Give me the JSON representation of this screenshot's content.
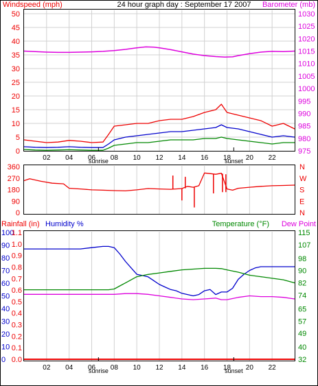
{
  "header": {
    "title": "24 hour graph day : September 17 2007",
    "left_label": "Windspeed (mph)",
    "right_label": "Barometer (mb)"
  },
  "x_axis": {
    "ticks": [
      "02",
      "04",
      "06",
      "08",
      "10",
      "12",
      "14",
      "16",
      "18",
      "20",
      "22"
    ],
    "sunrise_label": "sunrise",
    "sunset_label": "sunset",
    "sunrise_hour": 6.6,
    "sunset_hour": 18.6
  },
  "chart_data": [
    {
      "type": "line",
      "name": "wind-barometer",
      "x_range": [
        0,
        24
      ],
      "left_axis": {
        "label": "Windspeed (mph)",
        "ticks": [
          "0",
          "5",
          "10",
          "15",
          "20",
          "25",
          "30",
          "35",
          "40",
          "45",
          "50"
        ],
        "range": [
          0,
          50
        ]
      },
      "right_axis": {
        "label": "Barometer (mb)",
        "ticks": [
          "975",
          "980",
          "985",
          "990",
          "995",
          "1000",
          "1005",
          "1010",
          "1015",
          "1020",
          "1025",
          "1030"
        ],
        "range": [
          975,
          1030
        ]
      },
      "series": [
        {
          "key": "barometer",
          "axis": "right",
          "color": "#dd00dd",
          "x": [
            0,
            1,
            2,
            3,
            4,
            5,
            6,
            7,
            8,
            9,
            10,
            10.8,
            11.5,
            12,
            13,
            14,
            15,
            16,
            17,
            17.8,
            18.5,
            19,
            20,
            21,
            22,
            23,
            24
          ],
          "y": [
            1015.0,
            1014.8,
            1014.6,
            1014.5,
            1014.5,
            1014.6,
            1014.7,
            1014.9,
            1015.2,
            1015.7,
            1016.3,
            1016.7,
            1016.6,
            1016.3,
            1015.6,
            1014.7,
            1013.8,
            1013.2,
            1012.8,
            1012.6,
            1012.7,
            1013.2,
            1014.0,
            1014.6,
            1014.9,
            1014.8,
            1015.0
          ]
        },
        {
          "key": "wind_gust",
          "axis": "left",
          "color": "#ee0000",
          "x": [
            0,
            1,
            2,
            3,
            4,
            5,
            6,
            7,
            7.5,
            8,
            9,
            10,
            11,
            12,
            13,
            14,
            15,
            16,
            17,
            17.5,
            18,
            19,
            20,
            21,
            22,
            23,
            24
          ],
          "y": [
            4,
            3.5,
            3,
            3.2,
            3.8,
            3.5,
            3,
            3.2,
            6,
            9,
            9.5,
            10,
            10,
            11,
            11.5,
            11.5,
            12.5,
            14,
            15,
            17,
            14,
            13,
            12,
            11,
            9,
            10,
            8
          ]
        },
        {
          "key": "wind_avg",
          "axis": "left",
          "color": "#0000cc",
          "x": [
            0,
            1,
            2,
            3,
            4,
            5,
            6,
            7,
            7.5,
            8,
            9,
            10,
            11,
            12,
            13,
            14,
            15,
            16,
            17,
            17.5,
            18,
            19,
            20,
            21,
            22,
            23,
            24
          ],
          "y": [
            1.5,
            1.3,
            1.2,
            1.3,
            1.5,
            1.3,
            1.2,
            1.2,
            2.5,
            4,
            5,
            5.5,
            6,
            6.5,
            7,
            7,
            7.5,
            8,
            8.5,
            9.5,
            8.5,
            8,
            7,
            6,
            5,
            5.5,
            5
          ]
        },
        {
          "key": "wind_min",
          "axis": "left",
          "color": "#008800",
          "x": [
            0,
            1,
            2,
            3,
            4,
            5,
            6,
            7,
            7.5,
            8,
            9,
            10,
            11,
            12,
            13,
            14,
            15,
            16,
            17,
            17.5,
            18,
            19,
            20,
            21,
            22,
            23,
            24
          ],
          "y": [
            0.5,
            0.3,
            0.2,
            0.3,
            0.4,
            0.3,
            0.2,
            0.2,
            1,
            2,
            2.5,
            3,
            3,
            3.5,
            4,
            4,
            4,
            4.5,
            4.5,
            5,
            4.5,
            4,
            3.5,
            3,
            2.5,
            3,
            3
          ]
        }
      ]
    },
    {
      "type": "line",
      "name": "wind-direction",
      "x_range": [
        0,
        24
      ],
      "left_axis": {
        "ticks": [
          "0",
          "90",
          "180",
          "270",
          "360"
        ],
        "range": [
          0,
          360
        ]
      },
      "right_axis": {
        "ticks": [
          "N",
          "W",
          "S",
          "E",
          "N"
        ]
      },
      "series": [
        {
          "key": "direction",
          "color": "#ee0000",
          "x": [
            0,
            0.5,
            1.5,
            2.5,
            3.5,
            4,
            5,
            6,
            7,
            8,
            9,
            10,
            11,
            12,
            13,
            14,
            14.5,
            15,
            15.5,
            16,
            16.5,
            17,
            17.5,
            18,
            18.5,
            19,
            20,
            21,
            22,
            23,
            24
          ],
          "y": [
            250,
            265,
            245,
            230,
            225,
            190,
            185,
            178,
            175,
            172,
            170,
            178,
            188,
            185,
            182,
            188,
            205,
            198,
            210,
            310,
            305,
            300,
            308,
            185,
            175,
            190,
            198,
            205,
            210,
            212,
            215
          ],
          "spikes": [
            {
              "x": 13.2,
              "y0": 185,
              "y1": 290
            },
            {
              "x": 14.0,
              "y0": 188,
              "y1": 95
            },
            {
              "x": 14.3,
              "y0": 190,
              "y1": 280
            },
            {
              "x": 15.1,
              "y0": 200,
              "y1": 40
            },
            {
              "x": 16.8,
              "y0": 300,
              "y1": 150
            },
            {
              "x": 17.6,
              "y0": 305,
              "y1": 160
            },
            {
              "x": 17.9,
              "y0": 300,
              "y1": 160
            }
          ]
        }
      ]
    },
    {
      "type": "line",
      "name": "rain-humidity-temperature",
      "x_range": [
        0,
        24
      ],
      "labels": {
        "rainfall": "Rainfall (in)",
        "humidity": "Humidity %",
        "temperature": "Temperature (°F)",
        "dew_point": "Dew Point"
      },
      "left_axis_humidity": {
        "ticks": [
          "0",
          "10",
          "20",
          "30",
          "40",
          "50",
          "60",
          "70",
          "80",
          "90",
          "100"
        ],
        "range": [
          0,
          100
        ]
      },
      "left_axis_rain": {
        "ticks": [
          "0.0",
          "0.1",
          "0.2",
          "0.3",
          "0.4",
          "0.5",
          "0.6",
          "0.7",
          "0.8",
          "0.9",
          "1.0",
          "1.1"
        ],
        "range": [
          0,
          1.1
        ]
      },
      "right_axis": {
        "ticks": [
          "32",
          "40",
          "49",
          "57",
          "65",
          "74",
          "82",
          "90",
          "98",
          "107",
          "115"
        ],
        "range": [
          32,
          115
        ]
      },
      "series": [
        {
          "key": "humidity",
          "axis": "humidity",
          "color": "#0000cc",
          "x": [
            0,
            1,
            2,
            3,
            4,
            5,
            6,
            7,
            7.5,
            8,
            8.5,
            9,
            9.5,
            10,
            10.5,
            11,
            11.5,
            12,
            12.5,
            13,
            13.5,
            14,
            14.5,
            15,
            15.5,
            16,
            16.5,
            17,
            17.5,
            18,
            18.5,
            19,
            19.5,
            20,
            20.5,
            21,
            22,
            23,
            24
          ],
          "y": [
            87,
            87,
            87,
            87,
            87,
            87,
            88,
            89,
            89,
            88,
            83,
            77,
            72,
            67,
            66,
            65,
            62,
            59,
            57,
            55,
            54,
            52,
            51,
            50,
            51,
            54,
            55,
            51,
            53,
            53,
            56,
            63,
            67,
            70,
            72,
            73,
            73,
            73,
            73
          ]
        },
        {
          "key": "temperature",
          "axis": "right",
          "color": "#008800",
          "x": [
            0,
            1,
            2,
            3,
            4,
            5,
            6,
            7,
            7.5,
            8,
            8.5,
            9,
            9.5,
            10,
            11,
            12,
            13,
            14,
            15,
            16,
            17,
            17.5,
            18,
            19,
            20,
            21,
            22,
            23,
            24
          ],
          "y": [
            77.5,
            77.5,
            77.5,
            77.5,
            77.5,
            77.5,
            77.5,
            77.5,
            77.5,
            78,
            80,
            82,
            84,
            86,
            87.5,
            88.5,
            89.5,
            90.5,
            91,
            91.5,
            91.5,
            91.3,
            90.5,
            89,
            87,
            86,
            85,
            84,
            82
          ]
        },
        {
          "key": "dew_point",
          "axis": "right",
          "color": "#dd00dd",
          "x": [
            0,
            1,
            2,
            3,
            4,
            5,
            6,
            7,
            8,
            9,
            10,
            11,
            12,
            13,
            14,
            15,
            16,
            17,
            17.5,
            18,
            19,
            20,
            21,
            22,
            23,
            24
          ],
          "y": [
            74.5,
            74.5,
            74.5,
            74.5,
            74.5,
            74.5,
            74.5,
            74.5,
            74.5,
            75,
            75,
            74.5,
            73.5,
            72.5,
            71.5,
            71,
            71.5,
            72,
            71,
            71,
            72.5,
            73.5,
            73,
            73,
            72.5,
            71.5
          ]
        },
        {
          "key": "rainfall",
          "axis": "rain",
          "color": "#ee0000",
          "x": [
            0,
            24
          ],
          "y": [
            0,
            0
          ]
        }
      ]
    }
  ],
  "panel3_header": {
    "rainfall": "Rainfall (in)",
    "humidity": "Humidity %",
    "temperature": "Temperature (°F)",
    "dew_point": "Dew Point"
  },
  "colors": {
    "red": "#ee0000",
    "blue": "#0000cc",
    "green": "#008800",
    "magenta": "#dd00dd",
    "grid": "#d0d0d0"
  }
}
